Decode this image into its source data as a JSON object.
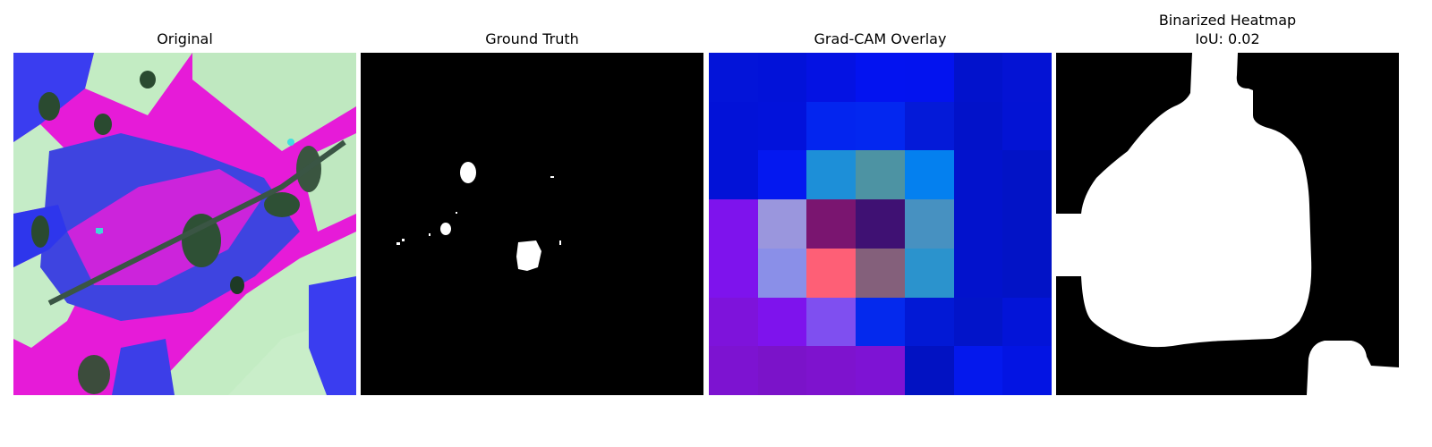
{
  "panels": [
    {
      "title": "Original"
    },
    {
      "title": "Ground Truth"
    },
    {
      "title": "Grad-CAM Overlay"
    },
    {
      "title": "Binarized Heatmap",
      "subtitle": "IoU: 0.02"
    }
  ],
  "gradcam_grid": [
    [
      "#0314d9",
      "#0212d9",
      "#0412e3",
      "#0313f0",
      "#0313ef",
      "#0212cc",
      "#0413d4"
    ],
    [
      "#0212d8",
      "#0212db",
      "#0325ef",
      "#0327f0",
      "#041ad8",
      "#0212c9",
      "#0313d4"
    ],
    [
      "#0212d7",
      "#0418f0",
      "#1d8fd8",
      "#4d93a3",
      "#0480ef",
      "#0212cc",
      "#0213c6"
    ],
    [
      "#7e13ed",
      "#9a96dd",
      "#7a1570",
      "#3f1173",
      "#4791c1",
      "#0212cc",
      "#0213c6"
    ],
    [
      "#7e13ed",
      "#8a8fe8",
      "#fe5f76",
      "#84607b",
      "#2b93cd",
      "#0212cc",
      "#0213c6"
    ],
    [
      "#7e13db",
      "#7e13ed",
      "#7f4ff0",
      "#0429ed",
      "#0219d5",
      "#0214c9",
      "#0314d8"
    ],
    [
      "#7d13d1",
      "#7b13c9",
      "#7e13ce",
      "#7e13d4",
      "#0212c2",
      "#0418ed",
      "#0314e3"
    ]
  ]
}
